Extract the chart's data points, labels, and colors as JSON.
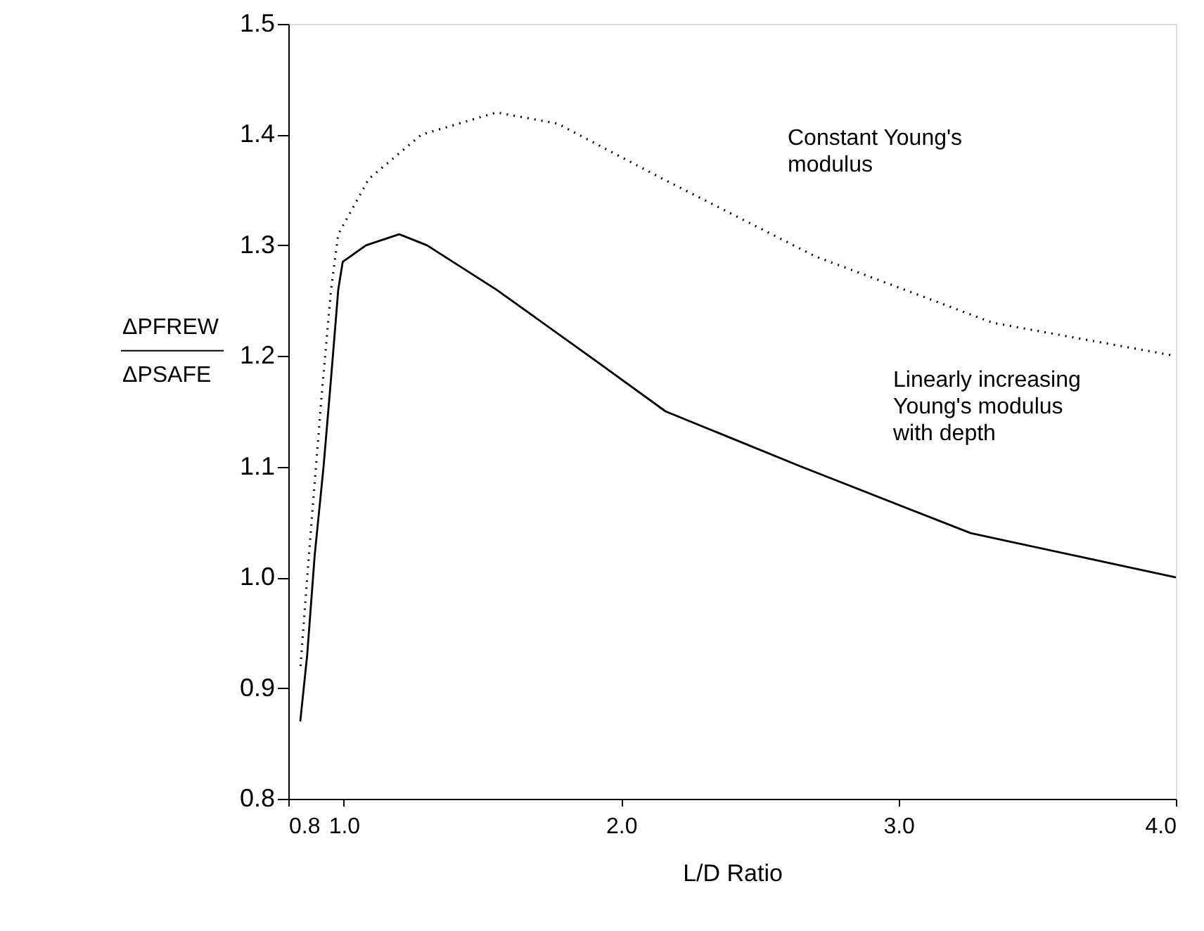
{
  "chart_data": {
    "type": "line",
    "xlabel": "L/D Ratio",
    "ylabel": "ΔPFREW\nΔPSAFE",
    "xlim": [
      0.8,
      4.0
    ],
    "xticks": [
      0.8,
      {
        "value": 1,
        "label": "1.0"
      },
      {
        "value": 2,
        "label": "2.0"
      },
      {
        "value": 3,
        "label": "3.0"
      },
      {
        "value": 4,
        "label": "4.0"
      }
    ],
    "ylim": [
      0.8,
      1.5
    ],
    "yticks": [
      0.8,
      0.9,
      {
        "value": 1,
        "label": "1.0"
      },
      1.1,
      1.2,
      1.3,
      1.4,
      1.5
    ],
    "series": [
      {
        "color": "#000000",
        "line_style": "dotted",
        "x": [
          0.844,
          0.868,
          0.89,
          0.922,
          0.954,
          0.98,
          1.09,
          1.28,
          1.55,
          1.77,
          2.15,
          2.7,
          3.34,
          4.0
        ],
        "values": [
          0.92,
          1.0,
          1.07,
          1.17,
          1.26,
          1.31,
          1.36,
          1.4,
          1.42,
          1.41,
          1.36,
          1.29,
          1.23,
          1.2
        ]
      },
      {
        "color": "#000000",
        "line_style": "solid",
        "x": [
          0.843,
          0.868,
          0.895,
          0.927,
          0.954,
          0.98,
          0.996,
          1.08,
          1.2,
          1.3,
          1.55,
          1.94,
          2.16,
          2.65,
          3.26,
          3.63,
          4.0
        ],
        "values": [
          0.87,
          0.93,
          1.02,
          1.1,
          1.18,
          1.26,
          1.285,
          1.3,
          1.31,
          1.3,
          1.26,
          1.19,
          1.15,
          1.1,
          1.04,
          1.02,
          1.0
        ]
      }
    ],
    "annotations": [
      "Constant Young's\nmodulus",
      "Linearly increasing\nYoung's modulus\nwith depth"
    ]
  }
}
